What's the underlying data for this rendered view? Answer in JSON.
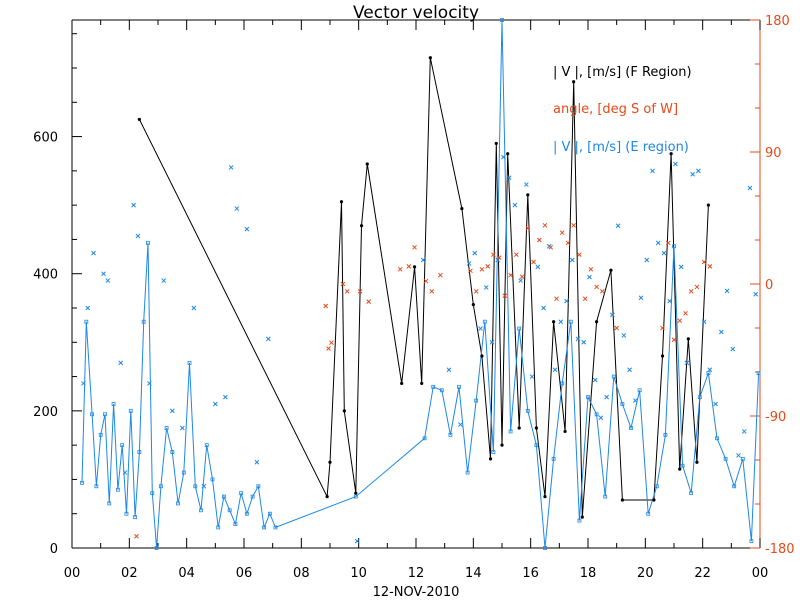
{
  "title": "Vector velocity",
  "x_axis_caption": "12-NOV-2010",
  "legend": {
    "f_region": "| V |, [m/s] (F Region)",
    "angle": "angle, [deg S of W]",
    "e_region": "| V |, [m/s] (E region)"
  },
  "colors": {
    "axes": "#000000",
    "f_region": "#000000",
    "e_region": "#1e88e5",
    "angle": "#e64a19"
  },
  "chart_data": {
    "type": "line",
    "title": "Vector velocity",
    "xlabel": "12-NOV-2010",
    "ylabel_left": "",
    "ylabel_right": "",
    "x_unit": "hours (UT)",
    "xlim": [
      0,
      24
    ],
    "ylim_left": [
      0,
      770
    ],
    "ylim_right": [
      -180,
      180
    ],
    "x_ticks": [
      "00",
      "02",
      "04",
      "06",
      "08",
      "10",
      "12",
      "14",
      "16",
      "18",
      "20",
      "22",
      "00"
    ],
    "y_ticks_left": [
      "0",
      "200",
      "400",
      "600"
    ],
    "y_ticks_right": [
      "-180",
      "-90",
      "0",
      "90",
      "180"
    ],
    "series": [
      {
        "name": "| V |, [m/s] (F Region)",
        "type": "line",
        "axis": "left",
        "x": [
          2.35,
          8.9,
          9.0,
          9.4,
          9.5,
          9.9,
          10.1,
          10.3,
          11.5,
          11.95,
          12.2,
          12.5,
          13.6,
          14.0,
          14.3,
          14.6,
          14.8,
          15.0,
          15.2,
          15.6,
          15.9,
          16.2,
          16.5,
          16.8,
          17.2,
          17.5,
          17.8,
          18.3,
          18.8,
          19.2,
          20.3,
          20.6,
          20.9,
          21.2,
          21.5,
          21.8,
          22.2
        ],
        "values": [
          625,
          75,
          125,
          505,
          200,
          80,
          470,
          560,
          240,
          410,
          240,
          715,
          495,
          355,
          280,
          130,
          590,
          150,
          575,
          175,
          515,
          175,
          75,
          330,
          170,
          680,
          45,
          330,
          405,
          70,
          70,
          280,
          575,
          115,
          305,
          125,
          500
        ]
      },
      {
        "name": "| V |, [m/s] (E region)",
        "type": "line",
        "axis": "left",
        "x": [
          0.35,
          0.5,
          0.7,
          0.85,
          1.0,
          1.15,
          1.3,
          1.45,
          1.6,
          1.75,
          1.9,
          2.05,
          2.2,
          2.35,
          2.5,
          2.65,
          2.8,
          2.95,
          3.1,
          3.3,
          3.5,
          3.7,
          3.9,
          4.1,
          4.3,
          4.5,
          4.7,
          4.9,
          5.1,
          5.3,
          5.5,
          5.7,
          5.9,
          6.1,
          6.3,
          6.5,
          6.7,
          6.9,
          7.1,
          9.9,
          12.3,
          12.6,
          12.9,
          13.2,
          13.5,
          13.8,
          14.1,
          14.4,
          14.7,
          15.0,
          15.3,
          15.6,
          15.9,
          16.2,
          16.5,
          16.8,
          17.1,
          17.4,
          17.7,
          18.0,
          18.3,
          18.6,
          18.9,
          19.2,
          19.5,
          19.8,
          20.1,
          20.4,
          20.7,
          21.0,
          21.3,
          21.6,
          21.9,
          22.2,
          22.5,
          22.8,
          23.1,
          23.4,
          23.7,
          23.95
        ],
        "values": [
          95,
          330,
          195,
          90,
          165,
          195,
          65,
          210,
          85,
          150,
          50,
          200,
          45,
          140,
          330,
          445,
          80,
          0,
          90,
          175,
          140,
          65,
          110,
          270,
          90,
          55,
          150,
          100,
          30,
          75,
          55,
          35,
          80,
          50,
          75,
          90,
          30,
          50,
          30,
          75,
          160,
          235,
          230,
          165,
          235,
          110,
          215,
          330,
          140,
          770,
          170,
          320,
          200,
          150,
          0,
          130,
          240,
          330,
          40,
          220,
          195,
          75,
          250,
          210,
          175,
          230,
          50,
          90,
          165,
          440,
          120,
          80,
          220,
          255,
          160,
          130,
          90,
          130,
          10,
          255
        ]
      },
      {
        "name": "| V |, [m/s] (E region)",
        "type": "scatter",
        "axis": "left",
        "x": [
          0.4,
          0.55,
          0.75,
          1.1,
          1.25,
          1.7,
          1.85,
          2.15,
          2.3,
          2.7,
          3.2,
          3.5,
          3.85,
          4.25,
          4.6,
          5.0,
          5.35,
          5.55,
          5.75,
          6.1,
          6.45,
          6.85,
          9.95,
          12.25,
          13.15,
          13.55,
          13.85,
          14.05,
          14.25,
          14.45,
          14.65,
          14.85,
          15.05,
          15.25,
          15.45,
          15.65,
          15.85,
          16.05,
          16.25,
          16.45,
          16.65,
          16.85,
          17.05,
          17.25,
          17.45,
          17.65,
          17.85,
          18.05,
          18.25,
          18.45,
          18.65,
          18.85,
          19.05,
          19.25,
          19.45,
          19.65,
          19.85,
          20.05,
          20.25,
          20.45,
          20.65,
          20.85,
          21.05,
          21.25,
          21.45,
          21.65,
          21.85,
          22.05,
          22.25,
          22.45,
          22.65,
          22.85,
          23.05,
          23.25,
          23.45,
          23.65,
          23.85
        ],
        "values": [
          240,
          350,
          430,
          400,
          390,
          270,
          110,
          500,
          455,
          240,
          390,
          200,
          175,
          350,
          90,
          210,
          220,
          555,
          495,
          465,
          125,
          305,
          10,
          420,
          260,
          180,
          415,
          430,
          320,
          380,
          300,
          420,
          570,
          540,
          500,
          390,
          530,
          250,
          410,
          350,
          440,
          260,
          330,
          360,
          420,
          305,
          300,
          395,
          245,
          190,
          220,
          340,
          470,
          310,
          260,
          215,
          365,
          420,
          550,
          445,
          430,
          360,
          560,
          410,
          270,
          545,
          550,
          330,
          260,
          210,
          315,
          375,
          290,
          135,
          170,
          525,
          370
        ]
      },
      {
        "name": "angle, [deg S of W]",
        "type": "scatter",
        "axis": "right",
        "x": [
          2.25,
          8.85,
          8.95,
          9.05,
          9.45,
          9.6,
          10.05,
          10.35,
          11.45,
          11.75,
          11.95,
          12.35,
          12.55,
          12.85,
          13.9,
          14.1,
          14.3,
          14.5,
          14.7,
          14.9,
          15.1,
          15.3,
          15.5,
          15.7,
          15.9,
          16.1,
          16.3,
          16.5,
          16.7,
          16.9,
          17.1,
          17.3,
          17.5,
          17.7,
          17.9,
          18.1,
          18.3,
          18.5,
          19.0,
          20.6,
          20.8,
          21.0,
          21.2,
          21.4,
          21.6,
          21.8,
          22.05,
          22.25
        ],
        "values": [
          -172,
          -15,
          -44,
          -40,
          0,
          -5,
          -5,
          -12,
          10,
          12,
          25,
          2,
          -5,
          6,
          9,
          -5,
          10,
          12,
          20,
          18,
          -8,
          6,
          20,
          5,
          38,
          15,
          30,
          40,
          25,
          -10,
          35,
          28,
          40,
          20,
          -10,
          10,
          -2,
          -5,
          -30,
          -30,
          28,
          -38,
          -25,
          -20,
          -5,
          -2,
          15,
          12
        ]
      }
    ]
  }
}
